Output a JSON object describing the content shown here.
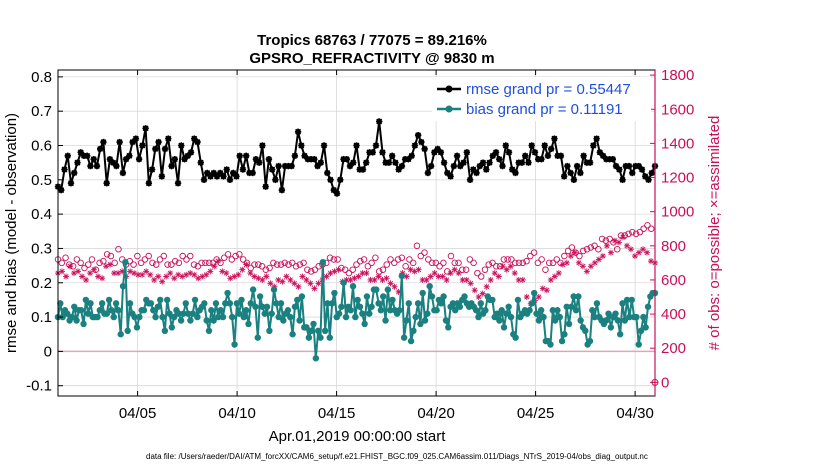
{
  "chart_data": {
    "type": "line",
    "title": "Tropics 68763 / 77075 = 89.216%",
    "subtitle": "GPSRO_REFRACTIVITY @ 9830 m",
    "xlabel": "Apr.01,2019 00:00:00 start",
    "ylabel_left": "rmse and bias (model - observation)",
    "ylabel_right": "# of obs: o=possible; ×=assimilated",
    "footer": "data file: /Users/raeder/DAI/ATM_forcXX/CAM6_setup/f.e21.FHIST_BGC.f09_025.CAM6assim.011/Diags_NTrS_2019-04/obs_diag_output.nc",
    "x_range": [
      1,
      31
    ],
    "x_ticks": [
      {
        "x": 5,
        "label": "04/05"
      },
      {
        "x": 10,
        "label": "04/10"
      },
      {
        "x": 15,
        "label": "04/15"
      },
      {
        "x": 20,
        "label": "04/20"
      },
      {
        "x": 25,
        "label": "04/25"
      },
      {
        "x": 30,
        "label": "04/30"
      }
    ],
    "y_left_range": [
      -0.13,
      0.82
    ],
    "y_left_ticks": [
      {
        "v": -0.1,
        "label": "-0.1"
      },
      {
        "v": 0,
        "label": "0"
      },
      {
        "v": 0.1,
        "label": "0.1"
      },
      {
        "v": 0.2,
        "label": "0.2"
      },
      {
        "v": 0.3,
        "label": "0.3"
      },
      {
        "v": 0.4,
        "label": "0.4"
      },
      {
        "v": 0.5,
        "label": "0.5"
      },
      {
        "v": 0.6,
        "label": "0.6"
      },
      {
        "v": 0.7,
        "label": "0.7"
      },
      {
        "v": 0.8,
        "label": "0.8"
      }
    ],
    "y_right_range": [
      -80,
      1830
    ],
    "y_right_ticks": [
      {
        "v": 0,
        "label": "0"
      },
      {
        "v": 200,
        "label": "200"
      },
      {
        "v": 400,
        "label": "400"
      },
      {
        "v": 600,
        "label": "600"
      },
      {
        "v": 800,
        "label": "800"
      },
      {
        "v": 1000,
        "label": "1000"
      },
      {
        "v": 1200,
        "label": "1200"
      },
      {
        "v": 1400,
        "label": "1400"
      },
      {
        "v": 1600,
        "label": "1600"
      },
      {
        "v": 1800,
        "label": "1800"
      }
    ],
    "grid": true,
    "zero_line": true,
    "colors": {
      "rmse": "#000000",
      "bias": "#1a8080",
      "obs": "#c8105a",
      "legend_text": "#1f4fe0",
      "grid": "#d9d9d9",
      "zero_line": "#e0a6b4"
    },
    "legend": [
      {
        "name": "rmse",
        "label": "rmse grand pr = 0.55447"
      },
      {
        "name": "bias",
        "label": "bias grand pr = 0.11191"
      }
    ],
    "x_start": 1.0,
    "x_step": 0.25,
    "series": [
      {
        "name": "rmse",
        "axis": "left",
        "values": [
          0.48,
          0.47,
          0.53,
          0.57,
          0.49,
          0.52,
          0.55,
          0.58,
          0.57,
          0.57,
          0.54,
          0.56,
          0.54,
          0.59,
          0.61,
          0.49,
          0.56,
          0.55,
          0.54,
          0.61,
          0.52,
          0.56,
          0.57,
          0.61,
          0.62,
          0.56,
          0.6,
          0.65,
          0.49,
          0.53,
          0.59,
          0.61,
          0.51,
          0.59,
          0.62,
          0.54,
          0.56,
          0.49,
          0.6,
          0.56,
          0.57,
          0.58,
          0.62,
          0.61,
          0.55,
          0.5,
          0.52,
          0.51,
          0.52,
          0.51,
          0.52,
          0.51,
          0.53,
          0.5,
          0.52,
          0.51,
          0.57,
          0.53,
          0.57,
          0.52,
          0.52,
          0.56,
          0.55,
          0.6,
          0.48,
          0.56,
          0.53,
          0.5,
          0.54,
          0.47,
          0.54,
          0.54,
          0.54,
          0.57,
          0.64,
          0.6,
          0.57,
          0.56,
          0.56,
          0.56,
          0.54,
          0.55,
          0.6,
          0.52,
          0.5,
          0.47,
          0.46,
          0.5,
          0.56,
          0.56,
          0.54,
          0.55,
          0.6,
          0.53,
          0.53,
          0.55,
          0.58,
          0.58,
          0.6,
          0.67,
          0.58,
          0.55,
          0.55,
          0.57,
          0.55,
          0.53,
          0.54,
          0.56,
          0.56,
          0.57,
          0.6,
          0.63,
          0.61,
          0.59,
          0.52,
          0.54,
          0.58,
          0.59,
          0.58,
          0.55,
          0.52,
          0.51,
          0.54,
          0.57,
          0.54,
          0.55,
          0.58,
          0.5,
          0.53,
          0.52,
          0.54,
          0.55,
          0.53,
          0.55,
          0.57,
          0.58,
          0.56,
          0.54,
          0.6,
          0.58,
          0.53,
          0.52,
          0.55,
          0.55,
          0.57,
          0.55,
          0.6,
          0.58,
          0.56,
          0.56,
          0.6,
          0.57,
          0.59,
          0.62,
          0.57,
          0.57,
          0.51,
          0.54,
          0.52,
          0.5,
          0.54,
          0.52,
          0.57,
          0.55,
          0.55,
          0.6,
          0.62,
          0.58,
          0.57,
          0.56,
          0.56,
          0.56,
          0.54,
          0.53,
          0.5,
          0.54,
          0.54,
          0.52,
          0.54,
          0.54,
          0.53,
          0.51,
          0.5,
          0.52,
          0.54
        ]
      },
      {
        "name": "bias",
        "axis": "left",
        "values": [
          0.1,
          0.14,
          0.1,
          0.12,
          0.11,
          0.09,
          0.1,
          0.13,
          0.09,
          0.12,
          0.12,
          0.08,
          0.15,
          0.11,
          0.14,
          0.1,
          0.1,
          0.1,
          0.12,
          0.14,
          0.11,
          0.11,
          0.15,
          0.12,
          0.1,
          0.14,
          0.12,
          0.05,
          0.19,
          0.26,
          0.06,
          0.14,
          0.11,
          0.1,
          0.07,
          0.1,
          0.12,
          0.12,
          0.15,
          0.14,
          0.14,
          0.12,
          0.1,
          0.13,
          0.15,
          0.1,
          0.06,
          0.15,
          0.11,
          0.07,
          0.1,
          0.12,
          0.11,
          0.09,
          0.11,
          0.14,
          0.11,
          0.09,
          0.11,
          0.15,
          0.1,
          0.12,
          0.13,
          0.14,
          0.09,
          0.06,
          0.12,
          0.09,
          0.14,
          0.1,
          0.12,
          0.1,
          0.14,
          0.17,
          0.14,
          0.1,
          0.02,
          0.14,
          0.11,
          0.15,
          0.1,
          0.12,
          0.08,
          0.14,
          0.18,
          0.13,
          0.04,
          0.16,
          0.13,
          0.11,
          0.13,
          0.06,
          0.11,
          0.18,
          0.14,
          0.1,
          0.14,
          0.09,
          0.11,
          0.12,
          0.1,
          0.05,
          0.13,
          0.15,
          0.09,
          0.16,
          0.07,
          0.07,
          0.04,
          0.06,
          0.08,
          -0.02,
          0.06,
          0.04,
          0.26,
          0.06,
          0.14,
          0.04,
          0.14,
          0.17,
          0.1,
          0.11,
          0.13,
          0.2,
          0.1,
          0.13,
          0.12,
          0.19,
          0.1,
          0.15,
          0.13,
          0.11,
          0.08,
          0.16,
          0.11,
          0.13,
          0.18,
          0.18,
          0.14,
          0.12,
          0.16,
          0.09,
          0.18,
          0.12,
          0.15,
          0.12,
          0.11,
          0.12,
          0.22,
          0.04,
          0.09,
          0.14,
          0.03,
          0.06,
          0.1,
          0.14,
          0.08,
          0.17,
          0.09,
          0.11,
          0.19,
          0.16,
          0.12,
          0.12,
          0.15,
          0.14,
          0.16,
          0.09,
          0.07,
          0.13,
          0.14,
          0.12,
          0.14,
          0.13,
          0.15,
          0.16,
          0.14,
          0.13,
          0.14,
          0.13,
          0.12,
          0.1,
          0.14,
          0.11,
          0.12,
          0.16,
          0.15,
          0.15,
          0.1,
          0.11,
          0.09,
          0.12,
          0.07,
          0.11,
          0.13,
          0.1,
          0.05,
          0.04,
          0.15,
          0.1,
          0.11,
          0.12,
          0.11,
          0.12,
          0.14,
          0.17,
          0.11,
          0.09,
          0.12,
          0.1,
          0.03,
          0.03,
          0.02,
          0.12,
          0.09,
          0.12,
          0.1,
          0.03,
          0.05,
          0.13,
          0.08,
          0.13,
          0.16,
          0.12,
          0.16,
          0.09,
          0.07,
          0.06,
          0.02,
          0.03,
          0.12,
          0.1,
          0.14,
          0.1,
          0.09,
          0.08,
          0.09,
          0.11,
          0.07,
          0.1,
          0.11,
          0.09,
          0.05,
          0.14,
          0.09,
          0.15,
          0.1,
          0.15,
          0.1,
          0.1,
          0.02,
          0.06,
          0.1,
          0.07,
          0.13,
          0.16,
          0.17,
          0.17
        ]
      },
      {
        "name": "obs_possible",
        "axis": "right",
        "marker": "circle",
        "values": [
          720,
          700,
          730,
          690,
          680,
          720,
          700,
          670,
          690,
          720,
          660,
          700,
          710,
          750,
          740,
          700,
          780,
          720,
          690,
          710,
          690,
          740,
          700,
          720,
          740,
          700,
          690,
          720,
          740,
          690,
          690,
          710,
          700,
          740,
          720,
          740,
          690,
          680,
          700,
          700,
          700,
          700,
          720,
          700,
          730,
          750,
          720,
          740,
          750,
          720,
          700,
          670,
          690,
          690,
          680,
          660,
          670,
          700,
          690,
          690,
          700,
          690,
          700,
          680,
          690,
          700,
          660,
          650,
          660,
          680,
          690,
          700,
          730,
          720,
          720,
          670,
          660,
          640,
          660,
          690,
          710,
          720,
          680,
          700,
          730,
          650,
          660,
          690,
          720,
          700,
          720,
          730,
          680,
          720,
          700,
          800,
          740,
          760,
          720,
          700,
          700,
          680,
          700,
          650,
          740,
          700,
          700,
          660,
          660,
          720,
          700,
          640,
          620,
          660,
          690,
          700,
          680,
          680,
          720,
          720,
          720,
          700,
          700,
          700,
          710,
          740,
          760,
          700,
          720,
          660,
          700,
          700,
          720,
          700,
          740,
          770,
          790,
          760,
          740,
          770,
          780,
          790,
          800,
          780,
          840,
          830,
          840,
          820,
          780,
          860,
          860,
          870,
          880,
          870,
          880,
          900,
          920,
          900,
          900
        ]
      },
      {
        "name": "obs_assimilated",
        "axis": "right",
        "marker": "asterisk",
        "values": [
          640,
          650,
          620,
          680,
          640,
          650,
          620,
          600,
          640,
          660,
          620,
          610,
          680,
          690,
          640,
          640,
          650,
          620,
          650,
          640,
          630,
          630,
          650,
          630,
          600,
          620,
          590,
          620,
          640,
          610,
          630,
          620,
          630,
          640,
          630,
          610,
          620,
          630,
          650,
          680,
          710,
          650,
          640,
          610,
          620,
          630,
          660,
          690,
          640,
          620,
          610,
          600,
          620,
          580,
          560,
          600,
          590,
          620,
          600,
          580,
          560,
          620,
          600,
          580,
          550,
          580,
          600,
          620,
          640,
          650,
          660,
          590,
          600,
          600,
          610,
          620,
          640,
          640,
          600,
          600,
          620,
          600,
          610,
          580,
          560,
          530,
          640,
          620,
          660,
          650,
          660,
          600,
          600,
          620,
          640,
          620,
          620,
          600,
          640,
          660,
          640,
          600,
          600,
          580,
          540,
          500,
          520,
          560,
          600,
          640,
          620,
          680,
          660,
          680,
          640,
          600,
          600,
          500,
          460,
          480,
          500,
          550,
          540,
          600,
          620,
          640,
          690,
          700,
          740,
          760,
          700,
          680,
          650,
          680,
          700,
          720,
          740,
          800,
          760,
          830,
          820,
          850,
          800,
          780,
          740,
          760,
          780,
          760,
          710,
          700
        ]
      }
    ],
    "edge_marker_right": {
      "x": 31,
      "v": 0
    }
  }
}
